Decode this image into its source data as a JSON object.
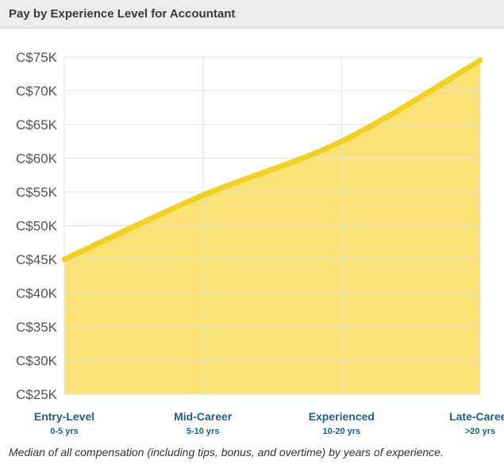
{
  "header": {
    "title": "Pay by Experience Level for Accountant"
  },
  "caption": "Median of all compensation (including tips, bonus, and overtime) by years of experience.",
  "colors": {
    "fill": "#fbe277",
    "line": "#f4d021",
    "grid": "#e2e2e2",
    "tick_label": "#555555",
    "category_label": "#1f5f88"
  },
  "chart_data": {
    "type": "area",
    "title": "Pay by Experience Level for Accountant",
    "xlabel": "",
    "ylabel": "",
    "categories": [
      {
        "label": "Entry-Level",
        "sublabel": "0-5 yrs"
      },
      {
        "label": "Mid-Career",
        "sublabel": "5-10 yrs"
      },
      {
        "label": "Experienced",
        "sublabel": "10-20 yrs"
      },
      {
        "label": "Late-Career",
        "sublabel": ">20 yrs"
      }
    ],
    "values": [
      45000,
      54500,
      62500,
      74500
    ],
    "ylim": [
      25000,
      75000
    ],
    "yticks": [
      25000,
      30000,
      35000,
      40000,
      45000,
      50000,
      55000,
      60000,
      65000,
      70000,
      75000
    ],
    "ytick_labels": [
      "C$25K",
      "C$30K",
      "C$35K",
      "C$40K",
      "C$45K",
      "C$50K",
      "C$55K",
      "C$60K",
      "C$65K",
      "C$70K",
      "C$75K"
    ],
    "grid": true,
    "legend": "none"
  }
}
